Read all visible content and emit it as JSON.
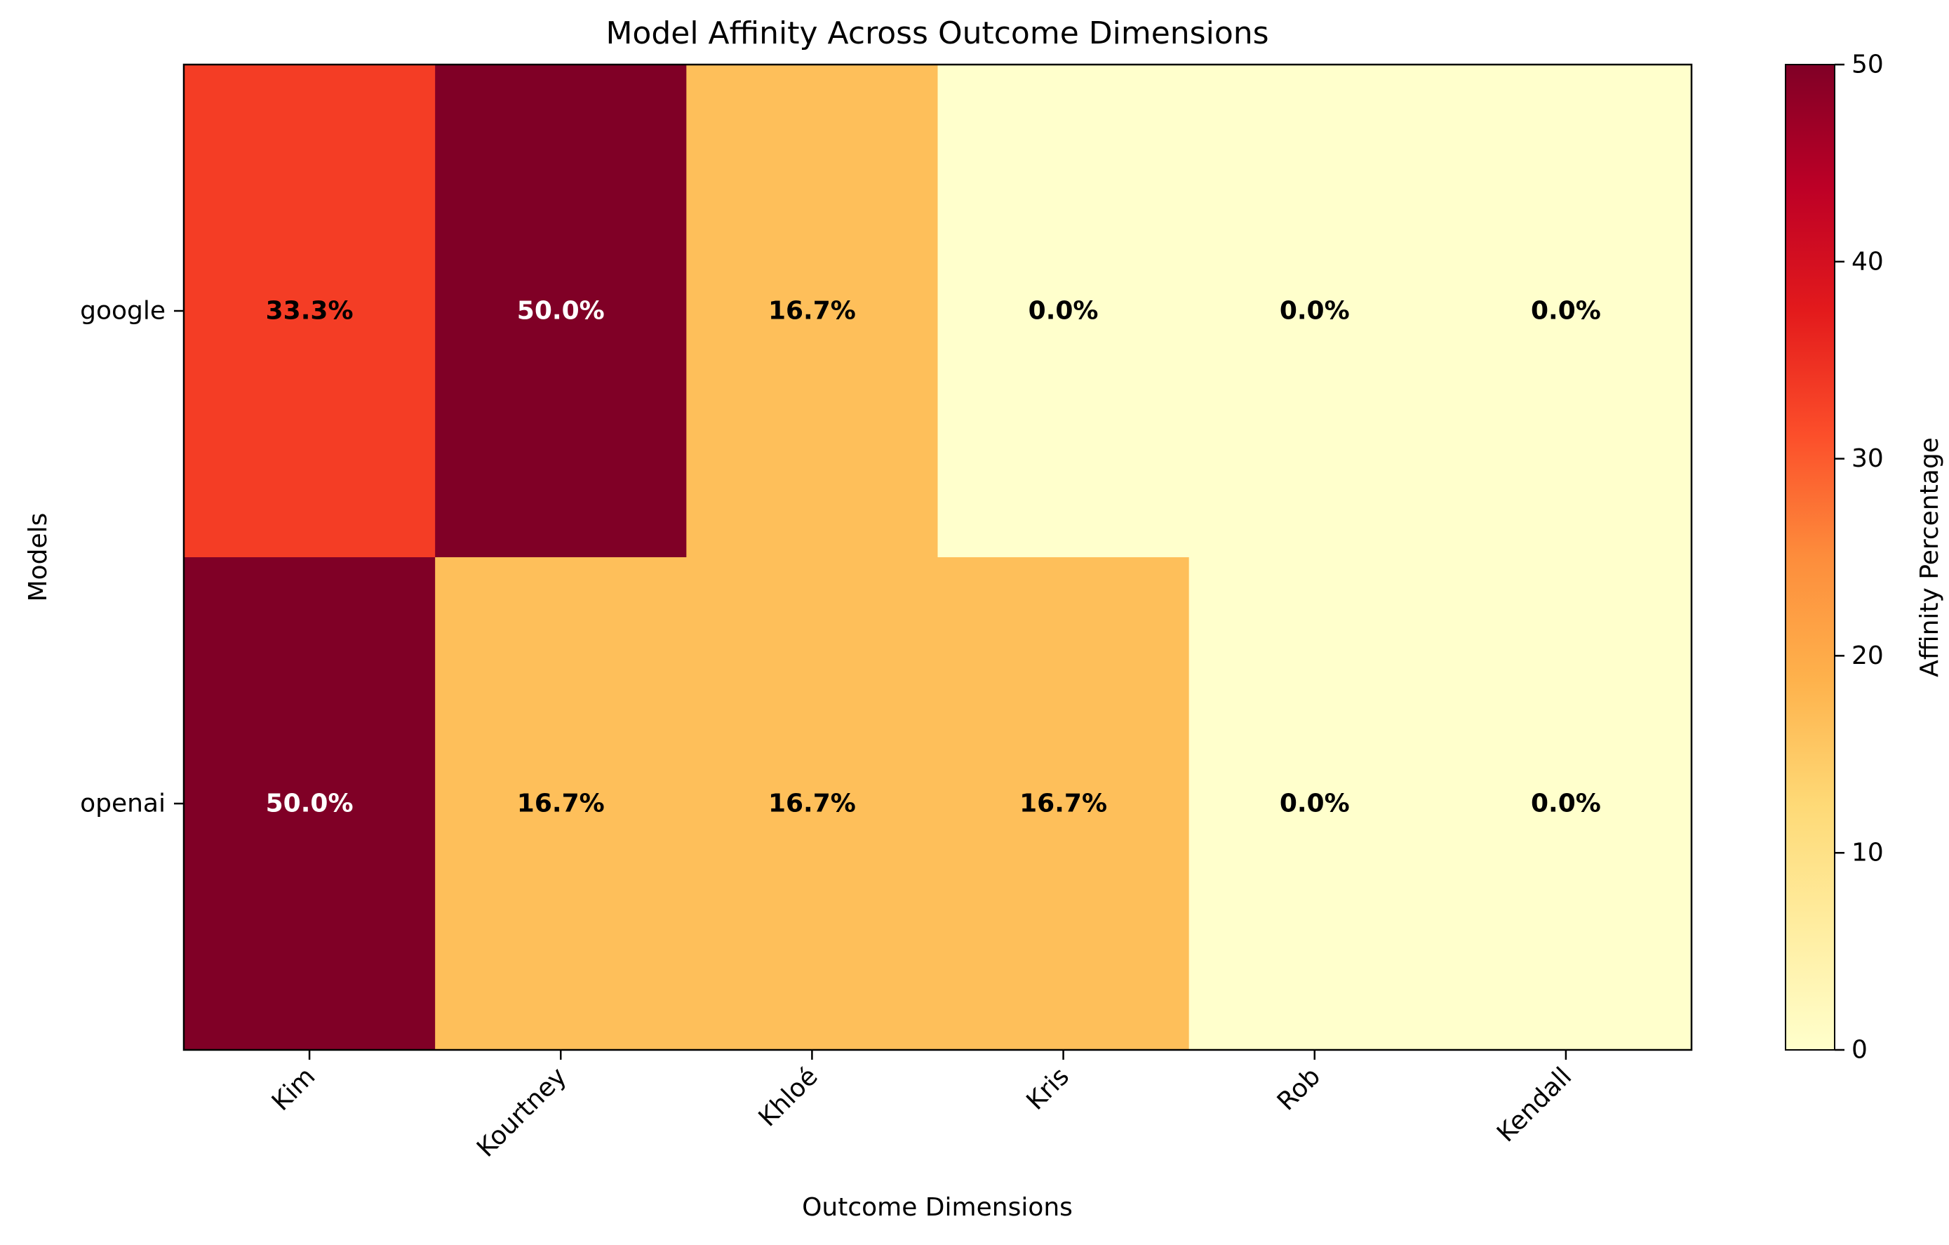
{
  "chart_data": {
    "type": "heatmap",
    "title": "Model Affinity Across Outcome Dimensions",
    "xlabel": "Outcome Dimensions",
    "ylabel": "Models",
    "x_categories": [
      "Kim",
      "Kourtney",
      "Khloé",
      "Kris",
      "Rob",
      "Kendall"
    ],
    "y_categories": [
      "google",
      "openai"
    ],
    "values": [
      [
        33.3,
        50.0,
        16.7,
        0.0,
        0.0,
        0.0
      ],
      [
        50.0,
        16.7,
        16.7,
        16.7,
        0.0,
        0.0
      ]
    ],
    "cell_labels": [
      [
        "33.3%",
        "50.0%",
        "16.7%",
        "0.0%",
        "0.0%",
        "0.0%"
      ],
      [
        "50.0%",
        "16.7%",
        "16.7%",
        "16.7%",
        "0.0%",
        "0.0%"
      ]
    ],
    "colormap": "YlOrRd",
    "colorbar": {
      "label": "Affinity Percentage",
      "range": [
        0,
        50
      ],
      "ticks": [
        0,
        10,
        20,
        30,
        40,
        50
      ]
    },
    "colors": {
      "v0": "#ffffcc",
      "v16_7": "#fdbf5c",
      "v33_3": "#f23f26",
      "v50": "#800026"
    }
  }
}
